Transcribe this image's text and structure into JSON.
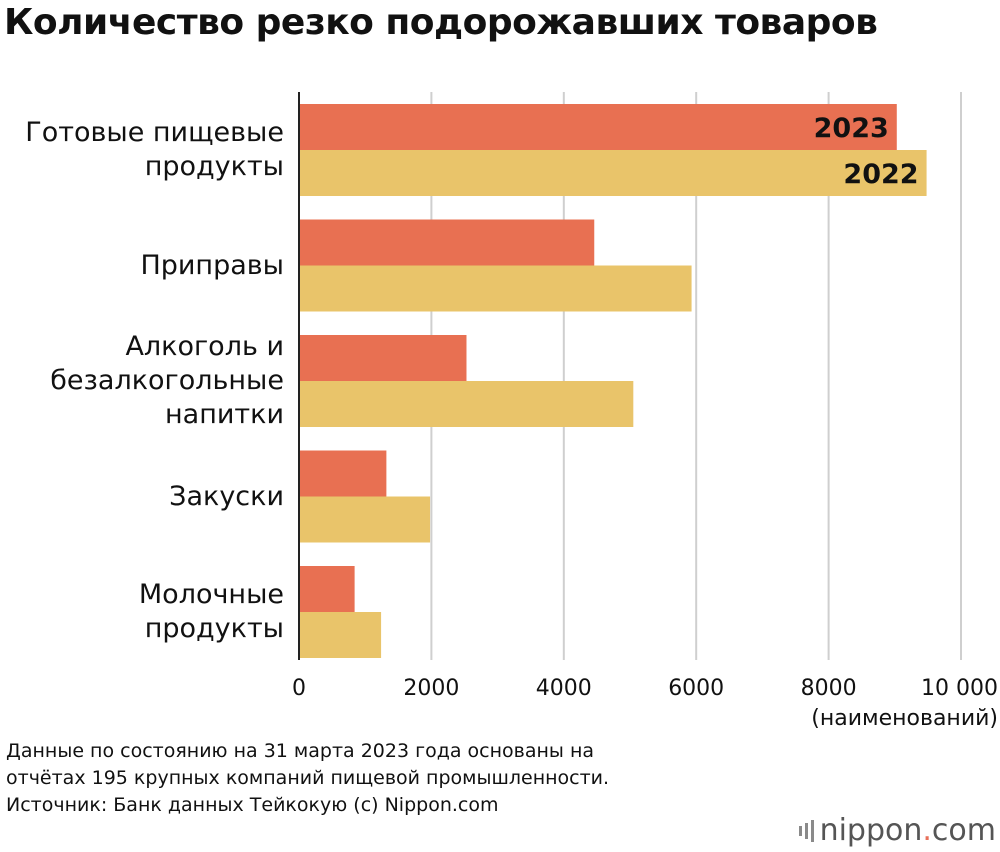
{
  "title": "Количество резко подорожавших товаров",
  "chart_data": {
    "type": "bar",
    "orientation": "horizontal",
    "categories": [
      [
        "Готовые пищевые",
        "продукты"
      ],
      [
        "Приправы"
      ],
      [
        "Алкоголь и",
        "безалкогольные",
        "напитки"
      ],
      [
        "Закуски"
      ],
      [
        "Молочные",
        "продукты"
      ]
    ],
    "series": [
      {
        "name": "2023",
        "color": "#e87052",
        "values": [
          9030,
          4460,
          2530,
          1320,
          840
        ]
      },
      {
        "name": "2022",
        "color": "#e9c46a",
        "values": [
          9480,
          5930,
          5050,
          1980,
          1240
        ]
      }
    ],
    "xlim": [
      0,
      10000
    ],
    "xticks": [
      0,
      2000,
      4000,
      6000,
      8000,
      10000
    ],
    "xtick_labels": [
      "0",
      "2000",
      "4000",
      "6000",
      "8000",
      "10 000"
    ],
    "xlabel": "(наименований)",
    "grid": true
  },
  "footer": {
    "lines": [
      "Данные по состоянию на 31 марта 2023 года основаны на",
      "отчётах 195 крупных компаний пищевой промышленности.",
      "Источник: Банк данных Тейкокую (c) Nippon.com"
    ]
  },
  "logo": {
    "name": "nippon",
    "dot": ".",
    "suffix": "com"
  }
}
